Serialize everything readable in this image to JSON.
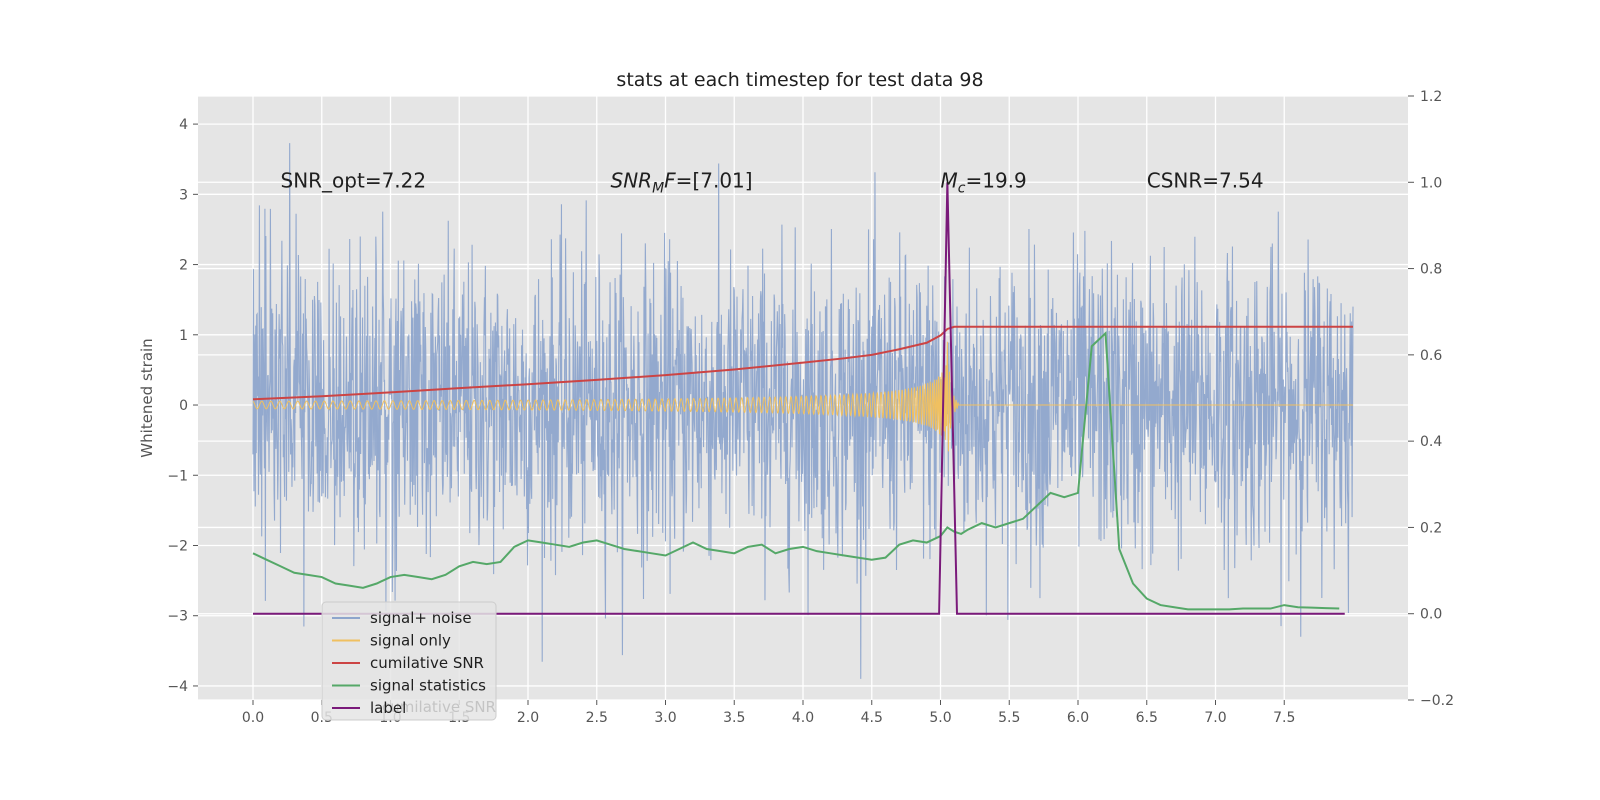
{
  "chart_data": {
    "type": "line",
    "title": "stats at each timestep for test data 98",
    "ylabel": "Whitened strain",
    "xlabel": "",
    "xlim": [
      -0.4,
      8.4
    ],
    "ylim": [
      -4.2,
      4.4
    ],
    "y2lim": [
      -0.2,
      1.2
    ],
    "grid": true,
    "legend_position": "lower-left",
    "x_ticks": [
      "0.0",
      "0.5",
      "1.0",
      "1.5",
      "2.0",
      "2.5",
      "3.0",
      "3.5",
      "4.0",
      "4.5",
      "5.0",
      "5.5",
      "6.0",
      "6.5",
      "7.0",
      "7.5"
    ],
    "x_tick_values": [
      0,
      0.5,
      1,
      1.5,
      2,
      2.5,
      3,
      3.5,
      4,
      4.5,
      5,
      5.5,
      6,
      6.5,
      7,
      7.5
    ],
    "y_ticks": [
      "−4",
      "−3",
      "−2",
      "−1",
      "0",
      "1",
      "2",
      "3",
      "4"
    ],
    "y_tick_values": [
      -4,
      -3,
      -2,
      -1,
      0,
      1,
      2,
      3,
      4
    ],
    "y2_ticks": [
      "−0.2",
      "0.0",
      "0.2",
      "0.4",
      "0.6",
      "0.8",
      "1.0",
      "1.2"
    ],
    "y2_tick_values": [
      -0.2,
      0,
      0.2,
      0.4,
      0.6,
      0.8,
      1.0,
      1.2
    ],
    "annotations": [
      {
        "text": "SNR_opt=7.22",
        "x": 0.2,
        "y": 3.2
      },
      {
        "text": "SNR_MF=[7.01]",
        "x": 2.6,
        "y": 3.2,
        "base": "SNR",
        "sub": "M",
        "rest": "F=[7.01]"
      },
      {
        "text": "M_c=19.9",
        "x": 5.0,
        "y": 3.2,
        "base": "M",
        "sub": "c",
        "rest": "=19.9"
      },
      {
        "text": "CSNR=7.54",
        "x": 6.5,
        "y": 3.2
      }
    ],
    "series": [
      {
        "name": "signal+ noise",
        "color": "#8ea5cc",
        "axis": "left",
        "style": "noise",
        "x_range": [
          0,
          8.0
        ]
      },
      {
        "name": "signal only",
        "color": "#f0c060",
        "axis": "left",
        "style": "chirp",
        "x_range": [
          0,
          8.0
        ]
      },
      {
        "name": "cumilative SNR",
        "color": "#cc4444",
        "axis": "right",
        "x": [
          0,
          0.5,
          1.0,
          1.5,
          2.0,
          2.5,
          3.0,
          3.5,
          4.0,
          4.3,
          4.5,
          4.7,
          4.9,
          5.0,
          5.05,
          5.1,
          5.5,
          6.0,
          6.5,
          7.0,
          7.5,
          8.0
        ],
        "y": [
          0.497,
          0.504,
          0.513,
          0.523,
          0.532,
          0.542,
          0.553,
          0.566,
          0.582,
          0.592,
          0.6,
          0.613,
          0.628,
          0.645,
          0.66,
          0.665,
          0.665,
          0.665,
          0.665,
          0.665,
          0.665,
          0.665
        ]
      },
      {
        "name": "signal statistics",
        "color": "#55a868",
        "axis": "right",
        "x": [
          0,
          0.1,
          0.2,
          0.3,
          0.4,
          0.5,
          0.6,
          0.7,
          0.8,
          0.9,
          1.0,
          1.1,
          1.2,
          1.3,
          1.4,
          1.5,
          1.6,
          1.7,
          1.8,
          1.9,
          2.0,
          2.1,
          2.2,
          2.3,
          2.4,
          2.5,
          2.6,
          2.7,
          2.8,
          2.9,
          3.0,
          3.1,
          3.2,
          3.3,
          3.4,
          3.5,
          3.6,
          3.7,
          3.8,
          3.9,
          4.0,
          4.1,
          4.2,
          4.3,
          4.4,
          4.5,
          4.6,
          4.7,
          4.8,
          4.9,
          5.0,
          5.05,
          5.1,
          5.15,
          5.2,
          5.3,
          5.4,
          5.5,
          5.6,
          5.7,
          5.8,
          5.9,
          6.0,
          6.1,
          6.2,
          6.3,
          6.4,
          6.5,
          6.6,
          6.7,
          6.8,
          6.9,
          7.0,
          7.1,
          7.2,
          7.3,
          7.4,
          7.5,
          7.6,
          7.7,
          7.8,
          7.9
        ],
        "y": [
          0.14,
          0.125,
          0.11,
          0.095,
          0.09,
          0.085,
          0.07,
          0.065,
          0.06,
          0.07,
          0.085,
          0.09,
          0.085,
          0.08,
          0.09,
          0.11,
          0.12,
          0.115,
          0.12,
          0.155,
          0.17,
          0.165,
          0.16,
          0.155,
          0.165,
          0.17,
          0.16,
          0.15,
          0.145,
          0.14,
          0.135,
          0.15,
          0.165,
          0.15,
          0.145,
          0.14,
          0.155,
          0.16,
          0.14,
          0.15,
          0.155,
          0.145,
          0.14,
          0.135,
          0.13,
          0.125,
          0.13,
          0.16,
          0.17,
          0.165,
          0.18,
          0.2,
          0.19,
          0.185,
          0.195,
          0.21,
          0.2,
          0.21,
          0.22,
          0.25,
          0.28,
          0.27,
          0.28,
          0.62,
          0.65,
          0.15,
          0.07,
          0.035,
          0.02,
          0.015,
          0.01,
          0.01,
          0.01,
          0.01,
          0.012,
          0.012,
          0.012,
          0.02,
          0.015,
          0.014,
          0.013,
          0.012
        ]
      },
      {
        "name": "label",
        "color": "#7a1a7a",
        "axis": "right",
        "x": [
          0,
          4.99,
          5.05,
          5.12,
          7.94
        ],
        "y": [
          0,
          0,
          1.0,
          0,
          0
        ]
      }
    ]
  },
  "legend": {
    "hidden_text": "cumilative SNR"
  }
}
